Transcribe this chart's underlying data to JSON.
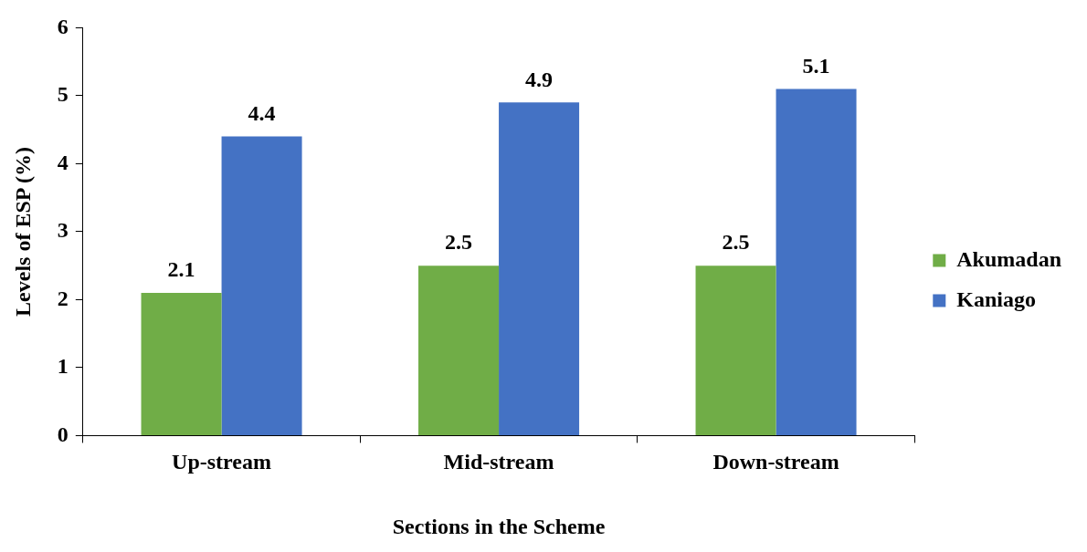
{
  "chart_data": {
    "type": "bar",
    "xlabel": "Sections in the Scheme",
    "ylabel": "Levels of ESP (%)",
    "categories": [
      "Up-stream",
      "Mid-stream",
      "Down-stream"
    ],
    "series": [
      {
        "name": "Akumadan",
        "color": "#70ad47",
        "values": [
          2.1,
          2.5,
          2.5
        ]
      },
      {
        "name": "Kaniago",
        "color": "#4472c4",
        "values": [
          4.4,
          4.9,
          5.1
        ]
      }
    ],
    "ylim": [
      0,
      6
    ],
    "yticks": [
      0,
      1,
      2,
      3,
      4,
      5,
      6
    ],
    "grid": false,
    "legend": "right",
    "data_labels": true
  }
}
